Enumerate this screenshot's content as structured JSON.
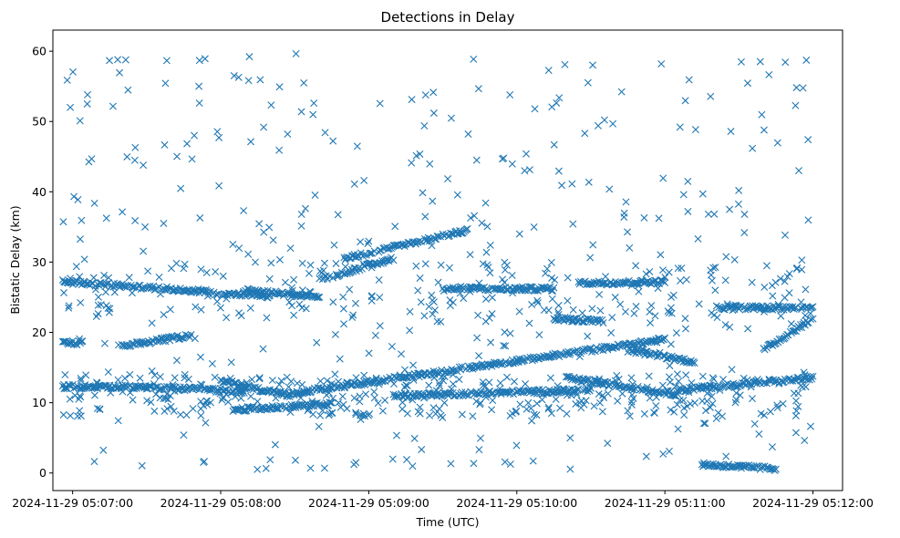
{
  "chart_data": {
    "type": "scatter",
    "title": "Detections in Delay",
    "xlabel": "Time (UTC)",
    "ylabel": "Bistatic Delay (km)",
    "marker": "x",
    "color": "#1f77b4",
    "xlim_seconds": [
      -8,
      312
    ],
    "ylim": [
      -2.5,
      63
    ],
    "x_ticks": [
      {
        "t": 0,
        "label": "2024-11-29 05:07:00"
      },
      {
        "t": 60,
        "label": "2024-11-29 05:08:00"
      },
      {
        "t": 120,
        "label": "2024-11-29 05:09:00"
      },
      {
        "t": 180,
        "label": "2024-11-29 05:10:00"
      },
      {
        "t": 240,
        "label": "2024-11-29 05:11:00"
      },
      {
        "t": 300,
        "label": "2024-11-29 05:12:00"
      }
    ],
    "y_ticks": [
      {
        "v": 0,
        "label": "0"
      },
      {
        "v": 10,
        "label": "10"
      },
      {
        "v": 20,
        "label": "20"
      },
      {
        "v": 30,
        "label": "30"
      },
      {
        "v": 40,
        "label": "40"
      },
      {
        "v": 50,
        "label": "50"
      },
      {
        "v": 60,
        "label": "60"
      }
    ],
    "x_time_unit": "seconds after 2024-11-29 05:07:00",
    "tracks": [
      {
        "name": "track-a",
        "t_start": -4,
        "t_end": 55,
        "y_start": 27.2,
        "y_end": 25.8
      },
      {
        "name": "track-b",
        "t_start": 55,
        "t_end": 80,
        "y_start": 25.6,
        "y_end": 25.2
      },
      {
        "name": "track-c",
        "t_start": -4,
        "t_end": 30,
        "y_start": 12.3,
        "y_end": 12.2
      },
      {
        "name": "track-d",
        "t_start": 30,
        "t_end": 70,
        "y_start": 12.2,
        "y_end": 11.6
      },
      {
        "name": "track-e",
        "t_start": 60,
        "t_end": 88,
        "y_start": 13.0,
        "y_end": 11.0
      },
      {
        "name": "track-f",
        "t_start": 88,
        "t_end": 240,
        "y_start": 11.3,
        "y_end": 19.0
      },
      {
        "name": "track-g",
        "t_start": 130,
        "t_end": 210,
        "y_start": 11.0,
        "y_end": 11.8
      },
      {
        "name": "track-h",
        "t_start": 200,
        "t_end": 245,
        "y_start": 13.5,
        "y_end": 11.2
      },
      {
        "name": "track-i",
        "t_start": 245,
        "t_end": 300,
        "y_start": 11.8,
        "y_end": 13.5
      },
      {
        "name": "track-j",
        "t_start": 20,
        "t_end": 48,
        "y_start": 18.0,
        "y_end": 19.6
      },
      {
        "name": "track-k",
        "t_start": 100,
        "t_end": 130,
        "y_start": 27.5,
        "y_end": 30.5
      },
      {
        "name": "track-l",
        "t_start": 110,
        "t_end": 160,
        "y_start": 30.5,
        "y_end": 34.5
      },
      {
        "name": "track-m",
        "t_start": 150,
        "t_end": 195,
        "y_start": 26.2,
        "y_end": 26.2
      },
      {
        "name": "track-n",
        "t_start": 205,
        "t_end": 240,
        "y_start": 27.0,
        "y_end": 27.2
      },
      {
        "name": "track-o",
        "t_start": 225,
        "t_end": 252,
        "y_start": 17.5,
        "y_end": 15.8
      },
      {
        "name": "track-p",
        "t_start": 280,
        "t_end": 300,
        "y_start": 17.5,
        "y_end": 22.0
      },
      {
        "name": "track-q",
        "t_start": 255,
        "t_end": 285,
        "y_start": 1.2,
        "y_end": 0.6
      },
      {
        "name": "track-r",
        "t_start": 195,
        "t_end": 215,
        "y_start": 22.0,
        "y_end": 21.5
      },
      {
        "name": "track-s",
        "t_start": -4,
        "t_end": 4,
        "y_start": 18.5,
        "y_end": 18.5
      },
      {
        "name": "track-t",
        "t_start": 65,
        "t_end": 105,
        "y_start": 9.0,
        "y_end": 9.8
      },
      {
        "name": "track-u",
        "t_start": 70,
        "t_end": 100,
        "y_start": 26.0,
        "y_end": 25.0
      },
      {
        "name": "track-v",
        "t_start": 260,
        "t_end": 300,
        "y_start": 23.5,
        "y_end": 23.5
      }
    ],
    "scatter_clutter": {
      "count": 900,
      "y_range": [
        0.5,
        60
      ],
      "t_range": [
        -4,
        300
      ]
    }
  }
}
